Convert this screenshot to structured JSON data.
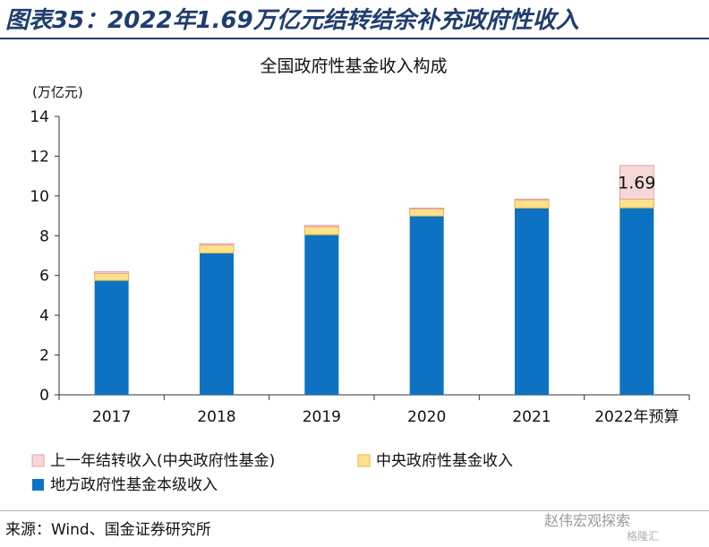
{
  "figure": {
    "title": "图表35：2022年1.69万亿元结转结余补充政府性收入",
    "source": "来源：Wind、国金证券研究所",
    "watermark": "赵伟宏观探索",
    "watermark2": "格隆汇"
  },
  "colors": {
    "local": "#0e72c3",
    "central": "#ffe28a",
    "carryover": "#f6d8d8",
    "carryover_edge": "#e3a3a3",
    "central_edge": "#e0b84a",
    "title": "#1f3d6e"
  },
  "chart_data": {
    "type": "bar",
    "stacked": true,
    "title": "全国政府性基金收入构成",
    "unit_label": "(万亿元)",
    "categories": [
      "2017",
      "2018",
      "2019",
      "2020",
      "2021",
      "2022年预算"
    ],
    "ylim": [
      0,
      14
    ],
    "yticks": [
      0,
      2,
      4,
      6,
      8,
      10,
      12,
      14
    ],
    "grid": false,
    "legend_position": "bottom-left",
    "series": [
      {
        "name": "地方政府性基金本级收入",
        "color_key": "local",
        "values": [
          5.75,
          7.13,
          8.05,
          8.99,
          9.39,
          9.4
        ]
      },
      {
        "name": "中央政府性基金收入",
        "color_key": "central",
        "values": [
          0.36,
          0.4,
          0.4,
          0.36,
          0.4,
          0.44
        ]
      },
      {
        "name": "上一年结转收入(中央政府性基金)",
        "color_key": "carryover",
        "values": [
          0.08,
          0.07,
          0.07,
          0.04,
          0.05,
          1.69
        ]
      }
    ],
    "annotations": [
      {
        "category": "2022年预算",
        "series": "上一年结转收入(中央政府性基金)",
        "text": "1.69"
      }
    ]
  }
}
